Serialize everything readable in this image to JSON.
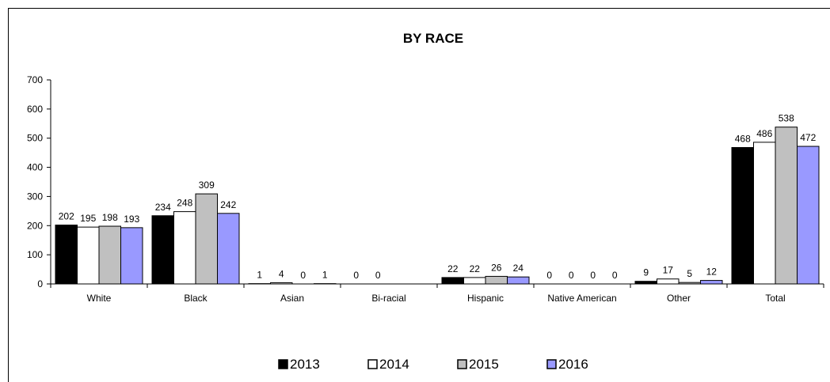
{
  "chart_data": {
    "type": "bar",
    "title": "BY RACE",
    "xlabel": "",
    "ylabel": "",
    "ylim": [
      0,
      700
    ],
    "yticks": [
      0,
      100,
      200,
      300,
      400,
      500,
      600,
      700
    ],
    "grid": false,
    "legend_position": "bottom",
    "categories": [
      "White",
      "Black",
      "Asian",
      "Bi-racial",
      "Hispanic",
      "Native American",
      "Other",
      "Total"
    ],
    "series": [
      {
        "name": "2013",
        "color": "#000000",
        "values": [
          202,
          234,
          1,
          0,
          22,
          0,
          9,
          468
        ],
        "labels": [
          "202",
          "234",
          "1",
          "0",
          "22",
          "0",
          "9",
          "468"
        ]
      },
      {
        "name": "2014",
        "color": "#ffffff",
        "values": [
          195,
          248,
          4,
          0,
          22,
          0,
          17,
          486
        ],
        "labels": [
          "195",
          "248",
          "4",
          "0",
          "22",
          "0",
          "17",
          "486"
        ]
      },
      {
        "name": "2015",
        "color": "#c0c0c0",
        "values": [
          198,
          309,
          0,
          null,
          26,
          0,
          5,
          538
        ],
        "labels": [
          "198",
          "309",
          "0",
          "",
          "26",
          "0",
          "5",
          "538"
        ]
      },
      {
        "name": "2016",
        "color": "#9999ff",
        "values": [
          193,
          242,
          1,
          null,
          24,
          0,
          12,
          472
        ],
        "labels": [
          "193",
          "242",
          "1",
          "",
          "24",
          "0",
          "12",
          "472"
        ]
      }
    ]
  }
}
